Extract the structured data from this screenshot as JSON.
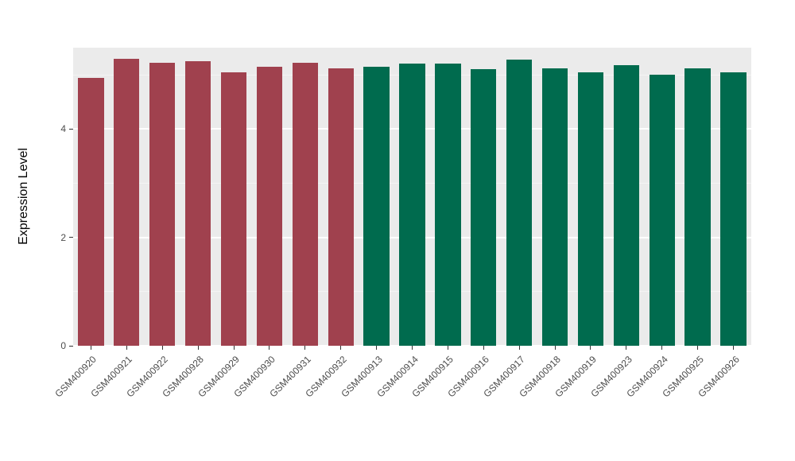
{
  "chart": {
    "ylabel": "Expression Level"
  },
  "chart_data": {
    "type": "bar",
    "title": "",
    "xlabel": "",
    "ylabel": "Expression Level",
    "categories": [
      "GSM400920",
      "GSM400921",
      "GSM400922",
      "GSM400928",
      "GSM400929",
      "GSM400930",
      "GSM400931",
      "GSM400932",
      "GSM400913",
      "GSM400914",
      "GSM400915",
      "GSM400916",
      "GSM400917",
      "GSM400918",
      "GSM400919",
      "GSM400923",
      "GSM400924",
      "GSM400925",
      "GSM400926"
    ],
    "values": [
      4.95,
      5.3,
      5.22,
      5.25,
      5.05,
      5.15,
      5.22,
      5.12,
      5.15,
      5.2,
      5.2,
      5.1,
      5.28,
      5.12,
      5.05,
      5.18,
      5.0,
      5.12,
      5.05
    ],
    "bar_colors": [
      "#A0414E",
      "#A0414E",
      "#A0414E",
      "#A0414E",
      "#A0414E",
      "#A0414E",
      "#A0414E",
      "#A0414E",
      "#006B4E",
      "#006B4E",
      "#006B4E",
      "#006B4E",
      "#006B4E",
      "#006B4E",
      "#006B4E",
      "#006B4E",
      "#006B4E",
      "#006B4E",
      "#006B4E"
    ],
    "group_colors": {
      "group1_red": "#A0414E",
      "group2_green": "#006B4E"
    },
    "ylim": [
      0,
      5.5
    ],
    "yticks": [
      0,
      2,
      4
    ],
    "yticks_minor": [
      1,
      3,
      5
    ],
    "grid": "on",
    "legend": "none",
    "panel_bg": "#EBEBEB",
    "grid_color": "#FFFFFF",
    "bar_width_fraction": 0.72
  }
}
